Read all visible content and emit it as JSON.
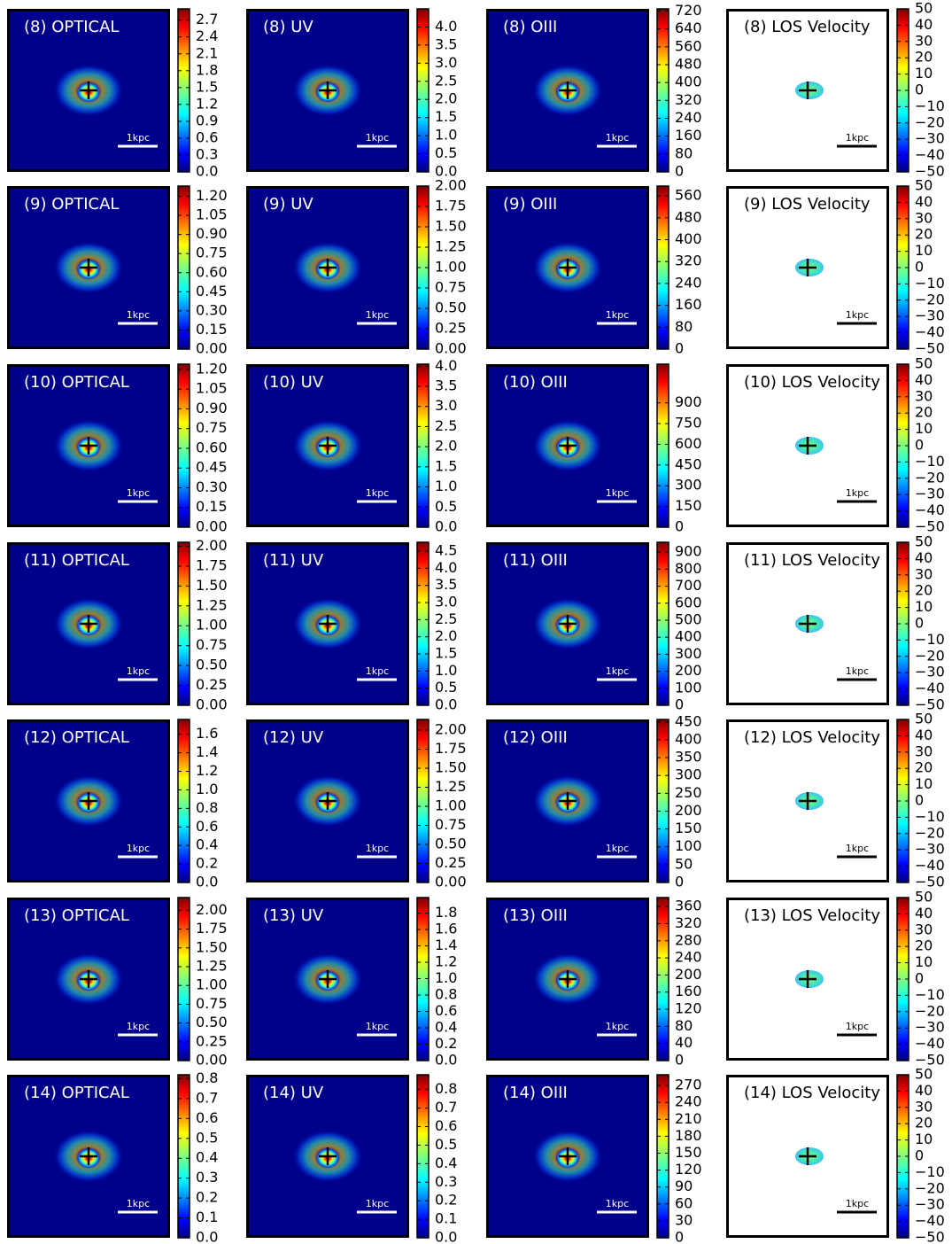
{
  "chart_data": [
    {
      "type": "image",
      "title": "(8) OPTICAL",
      "background": "#00008b",
      "colormap": "jet",
      "scale_bar": "1kpc",
      "ylim": [
        0,
        2.9
      ],
      "yticks": [
        {
          "value": 0,
          "label": "0.0"
        },
        0.3,
        0.6,
        0.9,
        1.2,
        1.5,
        1.8,
        2.1,
        2.4,
        2.7
      ]
    },
    {
      "type": "image",
      "title": "(8) UV",
      "background": "#00008b",
      "colormap": "jet",
      "scale_bar": "1kpc",
      "ylim": [
        0,
        4.5
      ],
      "yticks": [
        {
          "value": 0,
          "label": "0.0"
        },
        0.5,
        {
          "value": 1,
          "label": "1.0"
        },
        1.5,
        {
          "value": 2,
          "label": "2.0"
        },
        2.5,
        {
          "value": 3,
          "label": "3.0"
        },
        3.5,
        {
          "value": 4,
          "label": "4.0"
        }
      ]
    },
    {
      "type": "image",
      "title": "(8) OIII",
      "background": "#00008b",
      "colormap": "jet",
      "scale_bar": "1kpc",
      "ylim": [
        0,
        730
      ],
      "yticks": [
        0,
        80,
        160,
        240,
        320,
        400,
        480,
        560,
        640,
        720
      ]
    },
    {
      "type": "image",
      "title": "(8) LOS Velocity",
      "background": "#ffffff",
      "colormap": "jet",
      "scale_bar": "1kpc",
      "ylim": [
        -50,
        50
      ],
      "yticks": [
        {
          "value": -50,
          "label": "−50"
        },
        {
          "value": -40,
          "label": "−40"
        },
        {
          "value": -30,
          "label": "−30"
        },
        {
          "value": -20,
          "label": "−20"
        },
        {
          "value": -10,
          "label": "−10"
        },
        0,
        10,
        20,
        30,
        40,
        50
      ]
    },
    {
      "type": "image",
      "title": "(9) OPTICAL",
      "background": "#00008b",
      "colormap": "jet",
      "scale_bar": "1kpc",
      "ylim": [
        0,
        1.28
      ],
      "yticks": [
        {
          "value": 0,
          "label": "0.00"
        },
        0.15,
        {
          "value": 0.3,
          "label": "0.30"
        },
        0.45,
        {
          "value": 0.6,
          "label": "0.60"
        },
        0.75,
        {
          "value": 0.9,
          "label": "0.90"
        },
        1.05,
        {
          "value": 1.2,
          "label": "1.20"
        }
      ]
    },
    {
      "type": "image",
      "title": "(9) UV",
      "background": "#00008b",
      "colormap": "jet",
      "scale_bar": "1kpc",
      "ylim": [
        0,
        2
      ],
      "yticks": [
        {
          "value": 0,
          "label": "0.00"
        },
        0.25,
        {
          "value": 0.5,
          "label": "0.50"
        },
        0.75,
        {
          "value": 1,
          "label": "1.00"
        },
        1.25,
        {
          "value": 1.5,
          "label": "1.50"
        },
        1.75,
        {
          "value": 2,
          "label": "2.00"
        }
      ]
    },
    {
      "type": "image",
      "title": "(9) OIII",
      "background": "#00008b",
      "colormap": "jet",
      "scale_bar": "1kpc",
      "ylim": [
        0,
        596
      ],
      "yticks": [
        0,
        80,
        160,
        240,
        320,
        400,
        480,
        560
      ]
    },
    {
      "type": "image",
      "title": "(9) LOS Velocity",
      "background": "#ffffff",
      "colormap": "jet",
      "scale_bar": "1kpc",
      "ylim": [
        -50,
        50
      ],
      "yticks": [
        {
          "value": -50,
          "label": "−50"
        },
        {
          "value": -40,
          "label": "−40"
        },
        {
          "value": -30,
          "label": "−30"
        },
        {
          "value": -20,
          "label": "−20"
        },
        {
          "value": -10,
          "label": "−10"
        },
        0,
        10,
        20,
        30,
        40,
        50
      ]
    },
    {
      "type": "image",
      "title": "(10) OPTICAL",
      "background": "#00008b",
      "colormap": "jet",
      "scale_bar": "1kpc",
      "ylim": [
        0,
        1.24
      ],
      "yticks": [
        {
          "value": 0,
          "label": "0.00"
        },
        0.15,
        {
          "value": 0.3,
          "label": "0.30"
        },
        0.45,
        {
          "value": 0.6,
          "label": "0.60"
        },
        0.75,
        {
          "value": 0.9,
          "label": "0.90"
        },
        1.05,
        {
          "value": 1.2,
          "label": "1.20"
        }
      ]
    },
    {
      "type": "image",
      "title": "(10) UV",
      "background": "#00008b",
      "colormap": "jet",
      "scale_bar": "1kpc",
      "ylim": [
        0,
        4.05
      ],
      "yticks": [
        {
          "value": 0,
          "label": "0.0"
        },
        0.5,
        {
          "value": 1,
          "label": "1.0"
        },
        1.5,
        {
          "value": 2,
          "label": "2.0"
        },
        2.5,
        {
          "value": 3,
          "label": "3.0"
        },
        3.5,
        {
          "value": 4,
          "label": "4.0"
        }
      ]
    },
    {
      "type": "image",
      "title": "(10) OIII",
      "background": "#00008b",
      "colormap": "jet",
      "scale_bar": "1kpc",
      "ylim": [
        0,
        1180
      ],
      "yticks": [
        0,
        150,
        300,
        450,
        600,
        750,
        900
      ]
    },
    {
      "type": "image",
      "title": "(10) LOS Velocity",
      "background": "#ffffff",
      "colormap": "jet",
      "scale_bar": "1kpc",
      "ylim": [
        -50,
        50
      ],
      "yticks": [
        {
          "value": -50,
          "label": "−50"
        },
        {
          "value": -40,
          "label": "−40"
        },
        {
          "value": -30,
          "label": "−30"
        },
        {
          "value": -20,
          "label": "−20"
        },
        {
          "value": -10,
          "label": "−10"
        },
        0,
        10,
        20,
        30,
        40,
        50
      ]
    },
    {
      "type": "image",
      "title": "(11) OPTICAL",
      "background": "#00008b",
      "colormap": "jet",
      "scale_bar": "1kpc",
      "ylim": [
        0,
        2.05
      ],
      "yticks": [
        {
          "value": 0,
          "label": "0.00"
        },
        0.25,
        {
          "value": 0.5,
          "label": "0.50"
        },
        0.75,
        {
          "value": 1,
          "label": "1.00"
        },
        1.25,
        {
          "value": 1.5,
          "label": "1.50"
        },
        1.75,
        {
          "value": 2,
          "label": "2.00"
        }
      ]
    },
    {
      "type": "image",
      "title": "(11) UV",
      "background": "#00008b",
      "colormap": "jet",
      "scale_bar": "1kpc",
      "ylim": [
        0,
        4.76
      ],
      "yticks": [
        {
          "value": 0,
          "label": "0.0"
        },
        0.5,
        {
          "value": 1,
          "label": "1.0"
        },
        1.5,
        {
          "value": 2,
          "label": "2.0"
        },
        2.5,
        {
          "value": 3,
          "label": "3.0"
        },
        3.5,
        {
          "value": 4,
          "label": "4.0"
        },
        4.5
      ]
    },
    {
      "type": "image",
      "title": "(11) OIII",
      "background": "#00008b",
      "colormap": "jet",
      "scale_bar": "1kpc",
      "ylim": [
        0,
        958
      ],
      "yticks": [
        0,
        100,
        200,
        300,
        400,
        500,
        600,
        700,
        800,
        900
      ]
    },
    {
      "type": "image",
      "title": "(11) LOS Velocity",
      "background": "#ffffff",
      "colormap": "jet",
      "scale_bar": "1kpc",
      "ylim": [
        -50,
        50
      ],
      "yticks": [
        {
          "value": -50,
          "label": "−50"
        },
        {
          "value": -40,
          "label": "−40"
        },
        {
          "value": -30,
          "label": "−30"
        },
        {
          "value": -20,
          "label": "−20"
        },
        {
          "value": -10,
          "label": "−10"
        },
        0,
        10,
        20,
        30,
        40,
        50
      ]
    },
    {
      "type": "image",
      "title": "(12) OPTICAL",
      "background": "#00008b",
      "colormap": "jet",
      "scale_bar": "1kpc",
      "ylim": [
        0,
        1.76
      ],
      "yticks": [
        {
          "value": 0,
          "label": "0.0"
        },
        0.2,
        0.4,
        0.6,
        0.8,
        {
          "value": 1,
          "label": "1.0"
        },
        1.2,
        1.4,
        1.6
      ]
    },
    {
      "type": "image",
      "title": "(12) UV",
      "background": "#00008b",
      "colormap": "jet",
      "scale_bar": "1kpc",
      "ylim": [
        0,
        2.14
      ],
      "yticks": [
        {
          "value": 0,
          "label": "0.00"
        },
        0.25,
        {
          "value": 0.5,
          "label": "0.50"
        },
        0.75,
        {
          "value": 1,
          "label": "1.00"
        },
        1.25,
        {
          "value": 1.5,
          "label": "1.50"
        },
        1.75,
        {
          "value": 2,
          "label": "2.00"
        }
      ]
    },
    {
      "type": "image",
      "title": "(12) OIII",
      "background": "#00008b",
      "colormap": "jet",
      "scale_bar": "1kpc",
      "ylim": [
        0,
        457
      ],
      "yticks": [
        0,
        50,
        100,
        150,
        200,
        250,
        300,
        350,
        400,
        450
      ]
    },
    {
      "type": "image",
      "title": "(12) LOS Velocity",
      "background": "#ffffff",
      "colormap": "jet",
      "scale_bar": "1kpc",
      "ylim": [
        -50,
        50
      ],
      "yticks": [
        {
          "value": -50,
          "label": "−50"
        },
        {
          "value": -40,
          "label": "−40"
        },
        {
          "value": -30,
          "label": "−30"
        },
        {
          "value": -20,
          "label": "−20"
        },
        {
          "value": -10,
          "label": "−10"
        },
        0,
        10,
        20,
        30,
        40,
        50
      ]
    },
    {
      "type": "image",
      "title": "(13) OPTICAL",
      "background": "#00008b",
      "colormap": "jet",
      "scale_bar": "1kpc",
      "ylim": [
        0,
        2.17
      ],
      "yticks": [
        {
          "value": 0,
          "label": "0.00"
        },
        0.25,
        {
          "value": 0.5,
          "label": "0.50"
        },
        0.75,
        {
          "value": 1,
          "label": "1.00"
        },
        1.25,
        {
          "value": 1.5,
          "label": "1.50"
        },
        1.75,
        {
          "value": 2,
          "label": "2.00"
        }
      ]
    },
    {
      "type": "image",
      "title": "(13) UV",
      "background": "#00008b",
      "colormap": "jet",
      "scale_bar": "1kpc",
      "ylim": [
        0,
        1.99
      ],
      "yticks": [
        {
          "value": 0,
          "label": "0.0"
        },
        0.2,
        0.4,
        0.6,
        0.8,
        {
          "value": 1,
          "label": "1.0"
        },
        1.2,
        1.4,
        1.6,
        1.8
      ]
    },
    {
      "type": "image",
      "title": "(13) OIII",
      "background": "#00008b",
      "colormap": "jet",
      "scale_bar": "1kpc",
      "ylim": [
        0,
        381
      ],
      "yticks": [
        0,
        40,
        80,
        120,
        160,
        200,
        240,
        280,
        320,
        360
      ]
    },
    {
      "type": "image",
      "title": "(13) LOS Velocity",
      "background": "#ffffff",
      "colormap": "jet",
      "scale_bar": "1kpc",
      "ylim": [
        -50,
        50
      ],
      "yticks": [
        {
          "value": -50,
          "label": "−50"
        },
        {
          "value": -40,
          "label": "−40"
        },
        {
          "value": -30,
          "label": "−30"
        },
        {
          "value": -20,
          "label": "−20"
        },
        {
          "value": -10,
          "label": "−10"
        },
        0,
        10,
        20,
        30,
        40,
        50
      ]
    },
    {
      "type": "image",
      "title": "(14) OPTICAL",
      "background": "#00008b",
      "colormap": "jet",
      "scale_bar": "1kpc",
      "ylim": [
        0,
        0.82
      ],
      "yticks": [
        {
          "value": 0,
          "label": "0.0"
        },
        0.1,
        0.2,
        0.3,
        0.4,
        0.5,
        0.6,
        0.7,
        0.8
      ]
    },
    {
      "type": "image",
      "title": "(14) UV",
      "background": "#00008b",
      "colormap": "jet",
      "scale_bar": "1kpc",
      "ylim": [
        0,
        0.88
      ],
      "yticks": [
        {
          "value": 0,
          "label": "0.0"
        },
        0.1,
        0.2,
        0.3,
        0.4,
        0.5,
        0.6,
        0.7,
        0.8
      ]
    },
    {
      "type": "image",
      "title": "(14) OIII",
      "background": "#00008b",
      "colormap": "jet",
      "scale_bar": "1kpc",
      "ylim": [
        0,
        289
      ],
      "yticks": [
        0,
        30,
        60,
        90,
        120,
        150,
        180,
        210,
        240,
        270
      ]
    },
    {
      "type": "image",
      "title": "(14) LOS Velocity",
      "background": "#ffffff",
      "colormap": "jet",
      "scale_bar": "1kpc",
      "ylim": [
        -50,
        50
      ],
      "yticks": [
        {
          "value": -50,
          "label": "−50"
        },
        {
          "value": -40,
          "label": "−40"
        },
        {
          "value": -30,
          "label": "−30"
        },
        {
          "value": -20,
          "label": "−20"
        },
        {
          "value": -10,
          "label": "−10"
        },
        0,
        10,
        20,
        30,
        40,
        50
      ]
    }
  ]
}
